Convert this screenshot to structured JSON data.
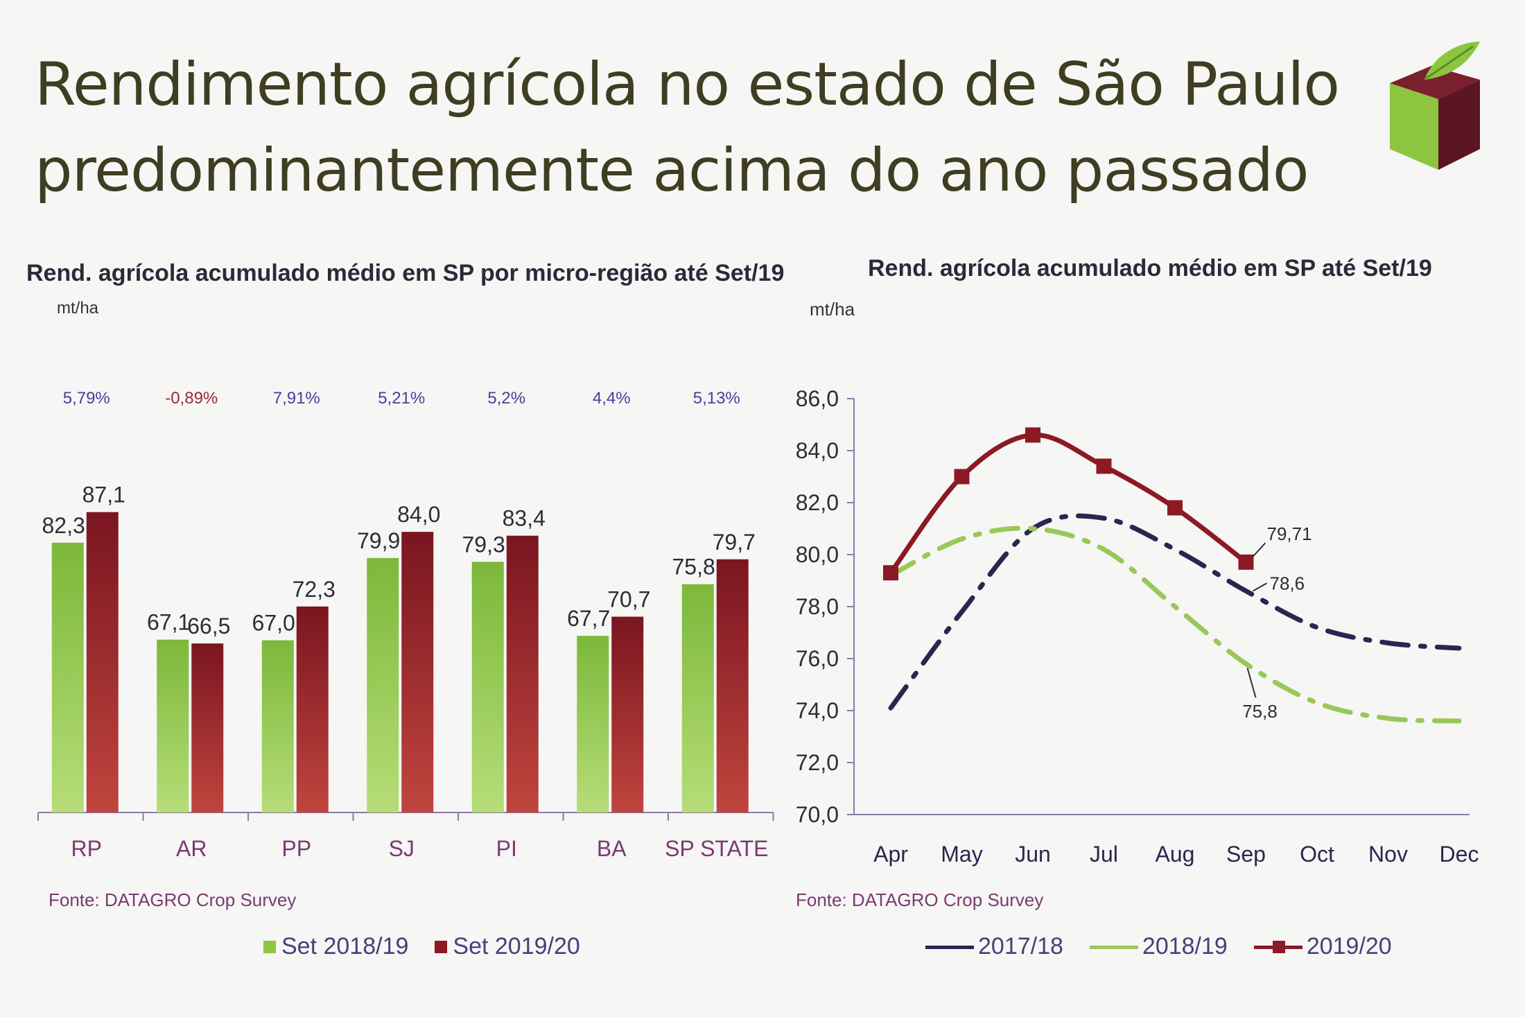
{
  "slide": {
    "title_line1": "Rendimento agrícola no estado de São Paulo",
    "title_line2": "predominantemente acima do ano passado"
  },
  "colors": {
    "green": "#8cc63f",
    "maroon": "#8b1a24",
    "navy": "#2e2450",
    "light_green": "#9ac75a",
    "title": "#3f3d22",
    "pct_positive": "#4a3d9a",
    "pct_negative": "#9a2a3a"
  },
  "left": {
    "subtitle": "Rend. agrícola acumulado médio em SP por micro-região até Set/19",
    "unit": "mt/ha",
    "source": "Fonte: DATAGRO Crop Survey",
    "legend": [
      "Set 2018/19",
      "Set 2019/20"
    ]
  },
  "right": {
    "subtitle": "Rend. agrícola acumulado médio em SP até Set/19",
    "unit": "mt/ha",
    "source": "Fonte: DATAGRO Crop Survey",
    "legend": [
      "2017/18",
      "2018/19",
      "2019/20"
    ]
  },
  "chart_data": [
    {
      "type": "bar",
      "title": "Rend. agrícola acumulado médio em SP por micro-região até Set/19",
      "ylabel": "mt/ha",
      "ylim": [
        40,
        90
      ],
      "categories": [
        "RP",
        "AR",
        "PP",
        "SJ",
        "PI",
        "BA",
        "SP STATE"
      ],
      "series": [
        {
          "name": "Set 2018/19",
          "values": [
            82.3,
            67.1,
            67.0,
            79.9,
            79.3,
            67.7,
            75.8
          ],
          "labels": [
            "82,3",
            "67,1",
            "67,0",
            "79,9",
            "79,3",
            "67,7",
            "75,8"
          ]
        },
        {
          "name": "Set 2019/20",
          "values": [
            87.1,
            66.5,
            72.3,
            84.0,
            83.4,
            70.7,
            79.7
          ],
          "labels": [
            "87,1",
            "66,5",
            "72,3",
            "84,0",
            "83,4",
            "70,7",
            "79,7"
          ]
        }
      ],
      "changes": [
        "5,79%",
        "-0,89%",
        "7,91%",
        "5,21%",
        "5,2%",
        "4,4%",
        "5,13%"
      ]
    },
    {
      "type": "line",
      "title": "Rend. agrícola acumulado médio em SP até Set/19",
      "ylabel": "mt/ha",
      "ylim": [
        70,
        86
      ],
      "yticks": [
        "70,0",
        "72,0",
        "74,0",
        "76,0",
        "78,0",
        "80,0",
        "82,0",
        "84,0",
        "86,0"
      ],
      "x": [
        "Apr",
        "May",
        "Jun",
        "Jul",
        "Aug",
        "Sep",
        "Oct",
        "Nov",
        "Dec"
      ],
      "series": [
        {
          "name": "2017/18",
          "values": [
            74.1,
            77.8,
            81.0,
            81.4,
            80.2,
            78.6,
            77.2,
            76.6,
            76.4
          ]
        },
        {
          "name": "2018/19",
          "values": [
            79.2,
            80.6,
            81.0,
            80.2,
            78.0,
            75.8,
            74.3,
            73.7,
            73.6
          ]
        },
        {
          "name": "2019/20",
          "values": [
            79.3,
            83.0,
            84.6,
            83.4,
            81.8,
            79.71,
            null,
            null,
            null
          ]
        }
      ],
      "annotations": [
        "79,71",
        "78,6",
        "75,8"
      ]
    }
  ]
}
